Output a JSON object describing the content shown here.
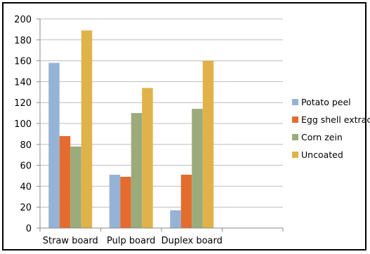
{
  "chart_data": {
    "type": "bar",
    "title": "",
    "xlabel": "",
    "ylabel": "",
    "ylim": [
      0,
      200
    ],
    "ytick_step": 20,
    "grid": true,
    "legend_position": "right",
    "categories": [
      "Straw board",
      "Pulp board",
      "Duplex board",
      ""
    ],
    "series": [
      {
        "name": "Potato peel",
        "color": "#95b3d7",
        "values": [
          158,
          51,
          17,
          null
        ]
      },
      {
        "name": "Egg shell extract",
        "color": "#e46c2e",
        "values": [
          88,
          49,
          51,
          null
        ]
      },
      {
        "name": "Corn zein",
        "color": "#9bab7b",
        "values": [
          78,
          110,
          114,
          null
        ]
      },
      {
        "name": "Uncoated",
        "color": "#e0b24a",
        "values": [
          189,
          134,
          160,
          null
        ]
      }
    ]
  }
}
